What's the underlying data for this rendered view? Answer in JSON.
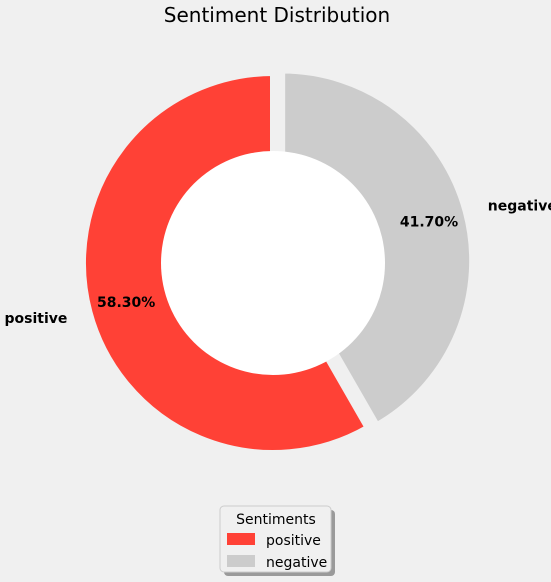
{
  "chart_data": {
    "type": "pie",
    "title": "Sentiment Distribution",
    "donut": true,
    "start_angle_deg": 90,
    "counterclock": true,
    "categories": [
      "positive",
      "negative"
    ],
    "values": [
      58.3,
      41.7
    ],
    "percent_labels": [
      "58.30%",
      "41.70%"
    ],
    "explode": [
      0,
      0.05
    ],
    "colors": [
      "#ff4136",
      "#cccccc"
    ],
    "legend": {
      "title": "Sentiments",
      "placement": "lower-center",
      "entries": [
        "positive",
        "negative"
      ]
    }
  }
}
